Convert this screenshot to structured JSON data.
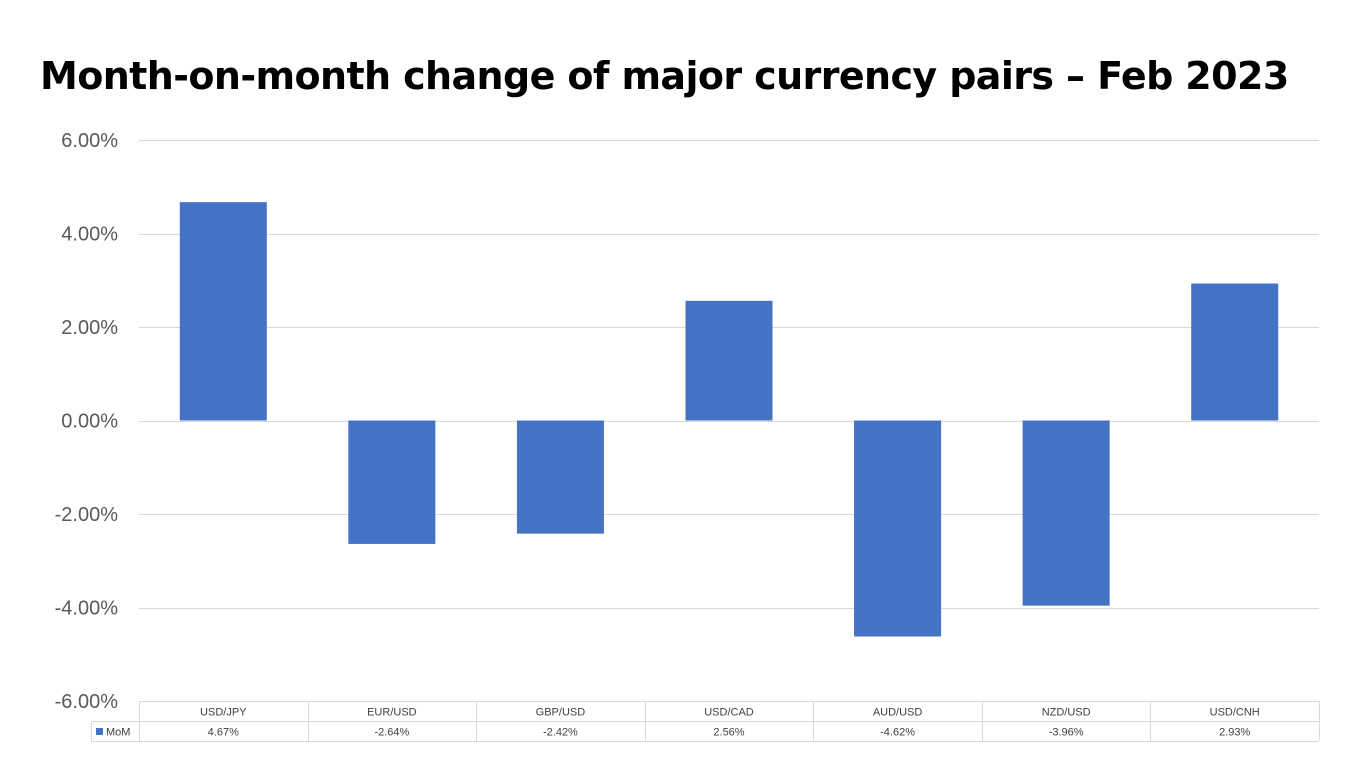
{
  "chart_data": {
    "type": "bar",
    "title": "Month-on-month change of major currency pairs – Feb 2023",
    "categories": [
      "USD/JPY",
      "EUR/USD",
      "GBP/USD",
      "USD/CAD",
      "AUD/USD",
      "NZD/USD",
      "USD/CNH"
    ],
    "series": [
      {
        "name": "MoM",
        "values": [
          4.67,
          -2.64,
          -2.42,
          2.56,
          -4.62,
          -3.96,
          2.93
        ],
        "value_labels": [
          "4.67%",
          "-2.64%",
          "-2.42%",
          "2.56%",
          "-4.62%",
          "-3.96%",
          "2.93%"
        ],
        "color": "#4472C4"
      }
    ],
    "y_ticks": [
      6,
      4,
      2,
      0,
      -2,
      -4,
      -6
    ],
    "y_tick_labels": [
      "6.00%",
      "4.00%",
      "2.00%",
      "0.00%",
      "-2.00%",
      "-4.00%",
      "-6.00%"
    ],
    "ylim": [
      -6,
      6
    ],
    "xlabel": "",
    "ylabel": "",
    "grid": true,
    "legend": "data-table",
    "data_table": true,
    "gridline_color": "#D9D9D9"
  }
}
